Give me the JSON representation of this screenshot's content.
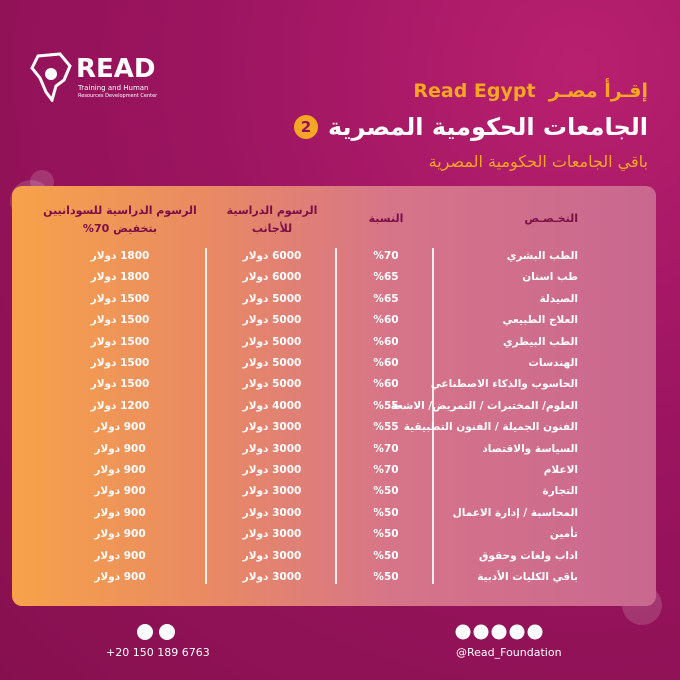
{
  "logo": {
    "name": "READ",
    "line1": "Training and Human",
    "line2": "Resources Development Center"
  },
  "header": {
    "brand_ar": "إقـرأ مصـر",
    "brand_en": "Read Egypt",
    "title": "الجامعات الحكومية المصرية",
    "badge": "2",
    "subtitle": "باقي الجامعات الحكومية المصرية"
  },
  "table": {
    "columns": [
      "التخـصـص",
      "النسبة",
      "الرسوم الدراسية للأجانب",
      "الرسوم الدراسية للسودانيين بتخفيض 70%"
    ],
    "rows": [
      [
        "الطب البشري",
        "%70",
        "6000 دولار",
        "1800 دولار"
      ],
      [
        "طب اسنان",
        "%65",
        "6000 دولار",
        "1800 دولار"
      ],
      [
        "الصيدلة",
        "%65",
        "5000 دولار",
        "1500 دولار"
      ],
      [
        "العلاج الطبيعي",
        "%60",
        "5000 دولار",
        "1500 دولار"
      ],
      [
        "الطب البيطري",
        "%60",
        "5000 دولار",
        "1500 دولار"
      ],
      [
        "الهندسات",
        "%60",
        "5000 دولار",
        "1500 دولار"
      ],
      [
        "الحاسوب والذكاء الاصطناعي",
        "%60",
        "5000 دولار",
        "1500 دولار"
      ],
      [
        "العلوم/ المختبرات / التمريض/ الاشعة",
        "%55",
        "4000 دولار",
        "1200 دولار"
      ],
      [
        "الفنون الجميلة / الفنون التطبيقية",
        "%55",
        "3000 دولار",
        "900 دولار"
      ],
      [
        "السياسة والاقتصاد",
        "%70",
        "3000 دولار",
        "900 دولار"
      ],
      [
        "الاعلام",
        "%70",
        "3000 دولار",
        "900 دولار"
      ],
      [
        "التجارة",
        "%50",
        "3000 دولار",
        "900 دولار"
      ],
      [
        "المحاسبة / إدارة الاعمال",
        "%50",
        "3000 دولار",
        "900 دولار"
      ],
      [
        "تأمين",
        "%50",
        "3000 دولار",
        "900 دولار"
      ],
      [
        "اداب ولغات وحقوق",
        "%50",
        "3000 دولار",
        "900 دولار"
      ],
      [
        "باقي الكليات الأدبية",
        "%50",
        "3000 دولار",
        "900 دولار"
      ]
    ]
  },
  "footer": {
    "phone": "+20 150 189 6763",
    "handle": "@Read_Foundation"
  }
}
